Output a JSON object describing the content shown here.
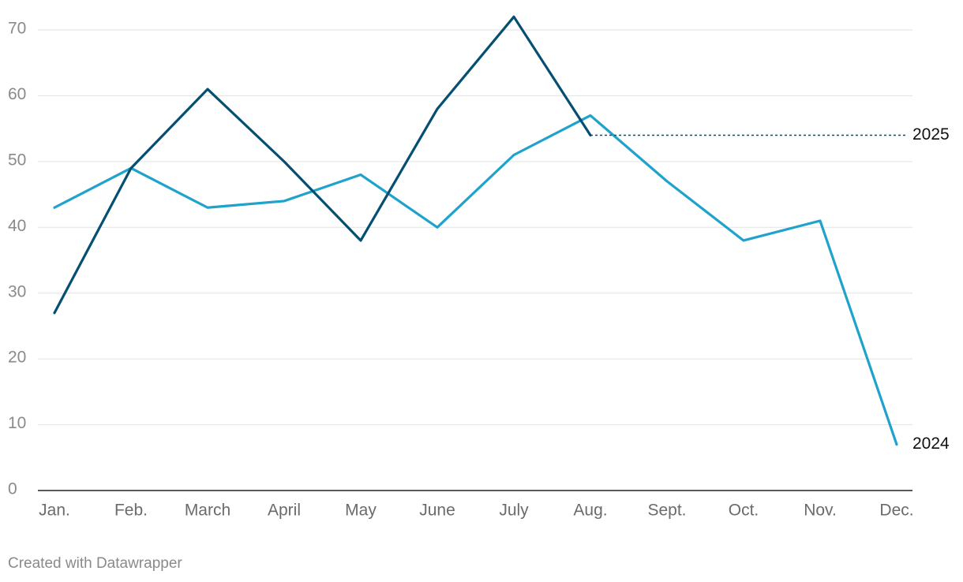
{
  "chart_data": {
    "type": "line",
    "categories": [
      "Jan.",
      "Feb.",
      "March",
      "April",
      "May",
      "June",
      "July",
      "Aug.",
      "Sept.",
      "Oct.",
      "Nov.",
      "Dec."
    ],
    "series": [
      {
        "name": "2024",
        "color": "#1fa3cc",
        "values": [
          43,
          49,
          43,
          44,
          48,
          40,
          51,
          57,
          47,
          38,
          41,
          7
        ]
      },
      {
        "name": "2025",
        "color": "#054f72",
        "values": [
          27,
          49,
          61,
          50,
          38,
          58,
          72,
          54,
          null,
          null,
          null,
          null
        ]
      }
    ],
    "ylim": [
      0,
      70
    ],
    "yticks": [
      0,
      10,
      20,
      30,
      40,
      50,
      60,
      70
    ],
    "grid": true,
    "footer": "Created with Datawrapper"
  }
}
